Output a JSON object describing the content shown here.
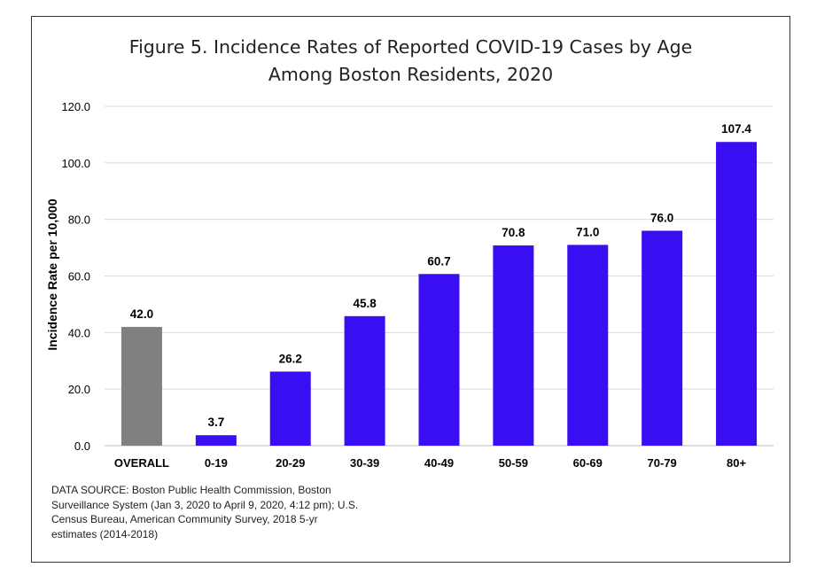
{
  "chart_data": {
    "type": "bar",
    "title_lines": [
      "Figure 5. Incidence Rates of Reported COVID-19 Cases by Age",
      "Among Boston Residents, 2020"
    ],
    "ylabel": "Incidence Rate per 10,000",
    "xlabel": "",
    "ylim": [
      0,
      120
    ],
    "yticks": [
      "0.0",
      "20.0",
      "40.0",
      "60.0",
      "80.0",
      "100.0",
      "120.0"
    ],
    "categories": [
      "OVERALL",
      "0-19",
      "20-29",
      "30-39",
      "40-49",
      "50-59",
      "60-69",
      "70-79",
      "80+"
    ],
    "values": [
      42.0,
      3.7,
      26.2,
      45.8,
      60.7,
      70.8,
      71.0,
      76.0,
      107.4
    ],
    "value_labels": [
      "42.0",
      "3.7",
      "26.2",
      "45.8",
      "60.7",
      "70.8",
      "71.0",
      "76.0",
      "107.4"
    ],
    "colors": [
      "#808080",
      "#3a0ef2",
      "#3a0ef2",
      "#3a0ef2",
      "#3a0ef2",
      "#3a0ef2",
      "#3a0ef2",
      "#3a0ef2",
      "#3a0ef2"
    ],
    "grid": true,
    "legend": "none"
  },
  "source_note": [
    "DATA SOURCE: Boston Public Health Commission, Boston",
    "Surveillance System (Jan 3, 2020 to April 9, 2020, 4:12 pm); U.S.",
    "Census Bureau, American Community Survey, 2018 5-yr",
    "estimates (2014-2018)"
  ]
}
